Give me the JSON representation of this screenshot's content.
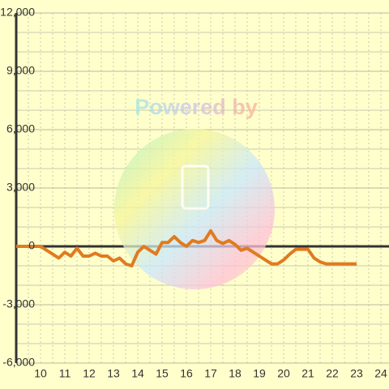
{
  "chart_data": {
    "type": "line",
    "watermark": "Powered by",
    "x": [
      9,
      10,
      10.25,
      10.5,
      10.75,
      11,
      11.25,
      11.5,
      11.75,
      12,
      12.25,
      12.5,
      12.75,
      13,
      13.25,
      13.5,
      13.75,
      14,
      14.25,
      14.5,
      14.75,
      15,
      15.25,
      15.5,
      15.75,
      16,
      16.25,
      16.5,
      16.75,
      17,
      17.25,
      17.5,
      17.75,
      18,
      18.25,
      18.5,
      18.75,
      19,
      19.25,
      19.5,
      19.75,
      20,
      20.25,
      20.5,
      20.75,
      21,
      21.25,
      21.5,
      21.75,
      22,
      22.5,
      23
    ],
    "series": [
      {
        "color": "#e07b20",
        "values": [
          0,
          0,
          -200,
          -400,
          -600,
          -300,
          -500,
          -100,
          -500,
          -500,
          -350,
          -500,
          -500,
          -750,
          -600,
          -900,
          -1000,
          -300,
          0,
          -200,
          -400,
          200,
          200,
          500,
          200,
          0,
          300,
          200,
          300,
          800,
          300,
          150,
          300,
          100,
          -200,
          -100,
          -300,
          -500,
          -700,
          -900,
          -900,
          -700,
          -400,
          -150,
          -150,
          -150,
          -600,
          -800,
          -900,
          -900,
          -900,
          -900
        ]
      }
    ],
    "xlim": [
      9,
      24.333
    ],
    "xticks": [
      10,
      11,
      12,
      13,
      14,
      15,
      16,
      17,
      18,
      19,
      20,
      21,
      22,
      23,
      24
    ],
    "xminorticks": [
      9.5,
      10.5,
      11.5,
      12.5,
      13.5,
      14.5,
      15.5,
      16.5,
      17.5,
      18.5,
      19.5,
      20.5,
      21.5,
      22.5,
      23.5
    ],
    "ylim": [
      -6000,
      12000
    ],
    "yticks": [
      {
        "value": -6000,
        "label": "-6,000"
      },
      {
        "value": -3000,
        "label": "-3,000"
      },
      0,
      {
        "value": 3000,
        "label": "3,000"
      },
      {
        "value": 6000,
        "label": "6,000"
      },
      {
        "value": 9000,
        "label": "9,000"
      },
      {
        "value": 12000,
        "label": "12,000"
      }
    ],
    "yminorticks": [
      -5000,
      -4000,
      -2000,
      -1000,
      1000,
      2000,
      4000,
      5000,
      7000,
      8000,
      10000,
      11000
    ],
    "grid": true
  }
}
